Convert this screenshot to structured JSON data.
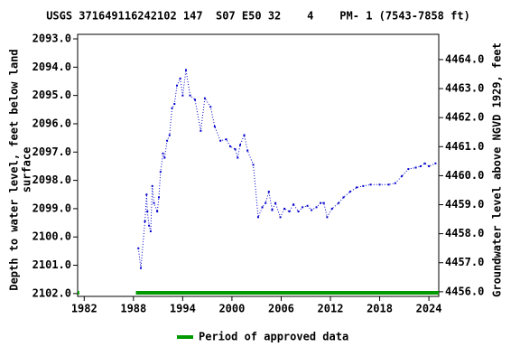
{
  "chart_data": {
    "type": "line",
    "title": "USGS 371649116242102 147  S07 E50 32    4    PM- 1 (7543-7858 ft)",
    "ylabel": [
      "Depth to water level, feet below land",
      "surface"
    ],
    "y2label": "Groundwater level above NGVD 1929, feet",
    "xlim": [
      1981.2,
      2025.2
    ],
    "xticks": [
      1982,
      1988,
      1994,
      2000,
      2006,
      2012,
      2018,
      2024
    ],
    "ylim": [
      2092.84,
      2102.1
    ],
    "y_inverted": true,
    "yticks": [
      {
        "value": 2093,
        "label": "2093.0"
      },
      {
        "value": 2094,
        "label": "2094.0"
      },
      {
        "value": 2095,
        "label": "2095.0"
      },
      {
        "value": 2096,
        "label": "2096.0"
      },
      {
        "value": 2097,
        "label": "2097.0"
      },
      {
        "value": 2098,
        "label": "2098.0"
      },
      {
        "value": 2099,
        "label": "2099.0"
      },
      {
        "value": 2100,
        "label": "2100.0"
      },
      {
        "value": 2101,
        "label": "2101.0"
      },
      {
        "value": 2102,
        "label": "2102.0"
      }
    ],
    "y2lim": [
      4455.84,
      4464.87
    ],
    "y2ticks": [
      {
        "value": 4464,
        "label": "4464.0"
      },
      {
        "value": 4463,
        "label": "4463.0"
      },
      {
        "value": 4462,
        "label": "4462.0"
      },
      {
        "value": 4461,
        "label": "4461.0"
      },
      {
        "value": 4460,
        "label": "4460.0"
      },
      {
        "value": 4459,
        "label": "4459.0"
      },
      {
        "value": 4458,
        "label": "4458.0"
      },
      {
        "value": 4457,
        "label": "4457.0"
      },
      {
        "value": 4456,
        "label": "4456.0"
      }
    ],
    "x": [
      1988.6,
      1988.9,
      1989.4,
      1989.6,
      1989.7,
      1989.9,
      1990.1,
      1990.3,
      1990.5,
      1990.9,
      1991.1,
      1991.3,
      1991.6,
      1991.8,
      1992.1,
      1992.4,
      1992.7,
      1993.0,
      1993.3,
      1993.7,
      1994.0,
      1994.4,
      1994.9,
      1995.5,
      1996.2,
      1996.7,
      1997.4,
      1997.9,
      1998.6,
      1999.3,
      1999.8,
      2000.4,
      2000.7,
      2001.0,
      2001.5,
      2001.9,
      2002.6,
      2003.2,
      2003.7,
      2004.1,
      2004.5,
      2004.9,
      2005.3,
      2005.9,
      2006.4,
      2007.0,
      2007.5,
      2008.1,
      2008.6,
      2009.2,
      2009.7,
      2010.3,
      2010.8,
      2011.2,
      2011.6,
      2012.2,
      2013.0,
      2013.6,
      2014.4,
      2015.2,
      2016.0,
      2016.9,
      2018.0,
      2019.1,
      2019.9,
      2020.7,
      2021.5,
      2022.4,
      2023.0,
      2023.5,
      2024.0,
      2024.8
    ],
    "series": [
      {
        "color": "#0000cc",
        "values": [
          2100.4,
          2101.1,
          2099.45,
          2098.5,
          2099.1,
          2099.6,
          2099.8,
          2098.2,
          2098.8,
          2099.1,
          2098.6,
          2097.7,
          2097.05,
          2097.2,
          2096.6,
          2096.4,
          2095.45,
          2095.3,
          2094.65,
          2094.4,
          2095.0,
          2094.1,
          2095.0,
          2095.15,
          2096.25,
          2095.1,
          2095.4,
          2096.1,
          2096.6,
          2096.55,
          2096.8,
          2096.9,
          2097.2,
          2096.75,
          2096.4,
          2096.95,
          2097.45,
          2099.3,
          2098.95,
          2098.8,
          2098.4,
          2099.05,
          2098.8,
          2099.3,
          2099.0,
          2099.1,
          2098.85,
          2099.1,
          2098.95,
          2098.9,
          2099.05,
          2098.95,
          2098.8,
          2098.8,
          2099.3,
          2099.0,
          2098.8,
          2098.6,
          2098.4,
          2098.25,
          2098.2,
          2098.15,
          2098.15,
          2098.15,
          2098.1,
          2097.85,
          2097.6,
          2097.55,
          2097.5,
          2097.4,
          2097.5,
          2097.4
        ]
      }
    ],
    "approved_periods": {
      "name": "Period of approved data",
      "color": "#009900",
      "starts": [
        1981.2,
        1988.3
      ],
      "ends": [
        1981.4,
        2025.2
      ]
    }
  }
}
